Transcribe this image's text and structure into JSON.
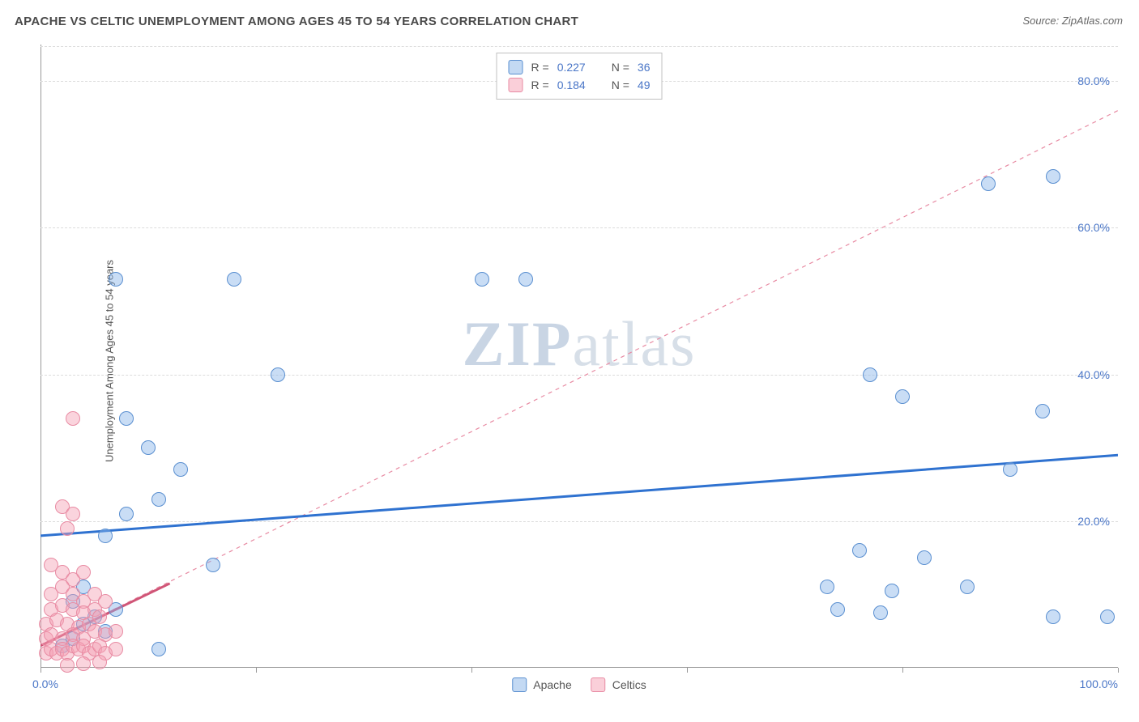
{
  "title": "APACHE VS CELTIC UNEMPLOYMENT AMONG AGES 45 TO 54 YEARS CORRELATION CHART",
  "source": "Source: ZipAtlas.com",
  "y_axis_label": "Unemployment Among Ages 45 to 54 years",
  "watermark_a": "ZIP",
  "watermark_b": "atlas",
  "chart": {
    "type": "scatter",
    "xlim": [
      0,
      100
    ],
    "ylim": [
      0,
      85
    ],
    "x_origin_label": "0.0%",
    "x_max_label": "100.0%",
    "y_ticks": [
      20,
      40,
      60,
      80
    ],
    "y_tick_labels": [
      "20.0%",
      "40.0%",
      "60.0%",
      "80.0%"
    ],
    "x_tick_positions": [
      0,
      20,
      40,
      60,
      80,
      100
    ],
    "grid_color": "#dcdcdc",
    "background_color": "#ffffff",
    "series": [
      {
        "name": "Apache",
        "color_fill": "rgba(135,180,232,0.45)",
        "color_stroke": "#5a8fd0",
        "marker_radius": 9,
        "R": "0.227",
        "N": "36",
        "trend": {
          "x1": 0,
          "y1": 18,
          "x2": 100,
          "y2": 29,
          "stroke": "#2f72d0",
          "width": 3,
          "dash": "none"
        },
        "points": [
          [
            7,
            53
          ],
          [
            18,
            53
          ],
          [
            41,
            53
          ],
          [
            45,
            53
          ],
          [
            88,
            66
          ],
          [
            94,
            67
          ],
          [
            22,
            40
          ],
          [
            77,
            40
          ],
          [
            80,
            37
          ],
          [
            93,
            35
          ],
          [
            8,
            34
          ],
          [
            10,
            30
          ],
          [
            13,
            27
          ],
          [
            90,
            27
          ],
          [
            6,
            18
          ],
          [
            8,
            21
          ],
          [
            11,
            23
          ],
          [
            16,
            14
          ],
          [
            76,
            16
          ],
          [
            82,
            15
          ],
          [
            73,
            11
          ],
          [
            79,
            10.5
          ],
          [
            86,
            11
          ],
          [
            74,
            8
          ],
          [
            78,
            7.5
          ],
          [
            94,
            7
          ],
          [
            99,
            7
          ],
          [
            11,
            2.5
          ],
          [
            3,
            9
          ],
          [
            4,
            11
          ],
          [
            5,
            7
          ],
          [
            6,
            5
          ],
          [
            2,
            3
          ],
          [
            3,
            4
          ],
          [
            4,
            6
          ],
          [
            7,
            8
          ]
        ]
      },
      {
        "name": "Celtics",
        "color_fill": "rgba(245,160,180,0.45)",
        "color_stroke": "#e88ba3",
        "marker_radius": 9,
        "R": "0.184",
        "N": "49",
        "trend": {
          "x1": 0,
          "y1": 3,
          "x2": 100,
          "y2": 76,
          "stroke": "#e88ba3",
          "width": 1.2,
          "dash": "5,5"
        },
        "trend_solid": {
          "x1": 0,
          "y1": 3,
          "x2": 12,
          "y2": 11.5,
          "stroke": "#d05577",
          "width": 3
        },
        "points": [
          [
            3,
            34
          ],
          [
            2,
            22
          ],
          [
            3,
            21
          ],
          [
            2.5,
            19
          ],
          [
            1,
            14
          ],
          [
            2,
            13
          ],
          [
            3,
            12
          ],
          [
            4,
            13
          ],
          [
            1,
            10
          ],
          [
            2,
            11
          ],
          [
            3,
            10
          ],
          [
            4,
            9
          ],
          [
            5,
            10
          ],
          [
            1,
            8
          ],
          [
            2,
            8.5
          ],
          [
            3,
            8
          ],
          [
            4,
            7.5
          ],
          [
            5,
            8
          ],
          [
            6,
            9
          ],
          [
            0.5,
            6
          ],
          [
            1.5,
            6.5
          ],
          [
            2.5,
            6
          ],
          [
            3.5,
            5.5
          ],
          [
            4.5,
            6
          ],
          [
            5.5,
            7
          ],
          [
            0.5,
            4
          ],
          [
            1,
            4.5
          ],
          [
            2,
            4
          ],
          [
            3,
            4.5
          ],
          [
            4,
            4
          ],
          [
            5,
            5
          ],
          [
            6,
            4.5
          ],
          [
            7,
            5
          ],
          [
            0.5,
            2
          ],
          [
            1,
            2.5
          ],
          [
            1.5,
            2
          ],
          [
            2,
            2.5
          ],
          [
            2.5,
            2
          ],
          [
            3,
            3
          ],
          [
            3.5,
            2.5
          ],
          [
            4,
            3
          ],
          [
            4.5,
            2
          ],
          [
            5,
            2.5
          ],
          [
            5.5,
            3
          ],
          [
            6,
            2
          ],
          [
            7,
            2.5
          ],
          [
            4,
            0.5
          ],
          [
            5.5,
            0.8
          ],
          [
            2.5,
            0.3
          ]
        ]
      }
    ],
    "stats_labels": {
      "R_label": "R =",
      "N_label": "N ="
    },
    "bottom_legend": [
      "Apache",
      "Celtics"
    ]
  }
}
